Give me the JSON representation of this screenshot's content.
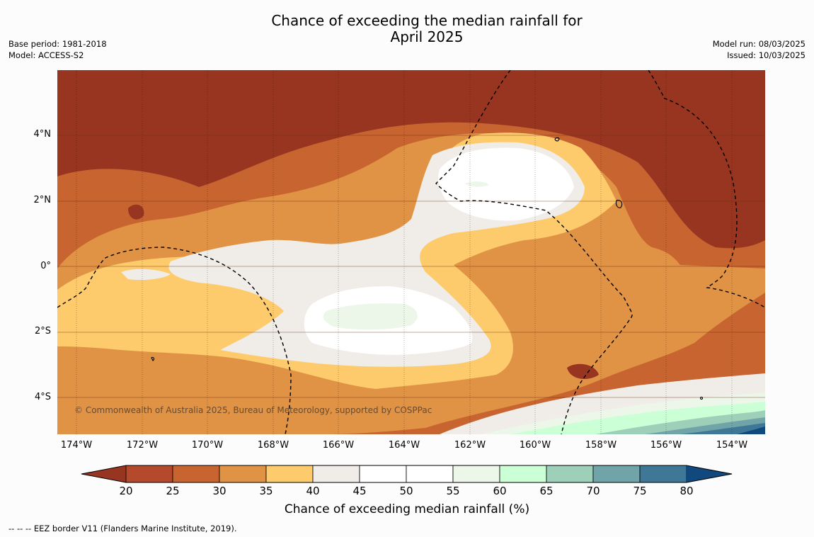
{
  "title": {
    "line1": "Chance of exceeding the median rainfall for",
    "line2": "April 2025"
  },
  "meta": {
    "base_period": "Base period: 1981-2018",
    "model": "Model: ACCESS-S2",
    "model_run": "Model run: 08/03/2025",
    "issued": "Issued: 10/03/2025"
  },
  "map": {
    "lat_ticks": [
      "4°N",
      "2°N",
      "0°",
      "2°S",
      "4°S"
    ],
    "lon_ticks": [
      "174°W",
      "172°W",
      "170°W",
      "168°W",
      "166°W",
      "164°W",
      "162°W",
      "160°W",
      "158°W",
      "156°W",
      "154°W"
    ],
    "copyright": "© Commonwealth of Australia 2025, Bureau of Meteorology, supported by COSPPac",
    "extent": {
      "lon_min": -175.2,
      "lon_max": -153.0,
      "lat_min": -5.2,
      "lat_max": 6.0
    }
  },
  "colorbar": {
    "ticks": [
      "20",
      "25",
      "30",
      "35",
      "40",
      "45",
      "50",
      "55",
      "60",
      "65",
      "70",
      "75",
      "80"
    ],
    "label": "Chance of exceeding median rainfall (%)",
    "colors": [
      "#973520",
      "#b4492b",
      "#c8642f",
      "#e09345",
      "#fecb6c",
      "#f0ede9",
      "#ffffff",
      "#ffffff",
      "#ecf7ea",
      "#cbffd6",
      "#9ed0b9",
      "#70a4a8",
      "#3f7897",
      "#11487e"
    ]
  },
  "footnote": "--  --  -- EEZ border V11 (Flanders Marine Institute, 2019)."
}
